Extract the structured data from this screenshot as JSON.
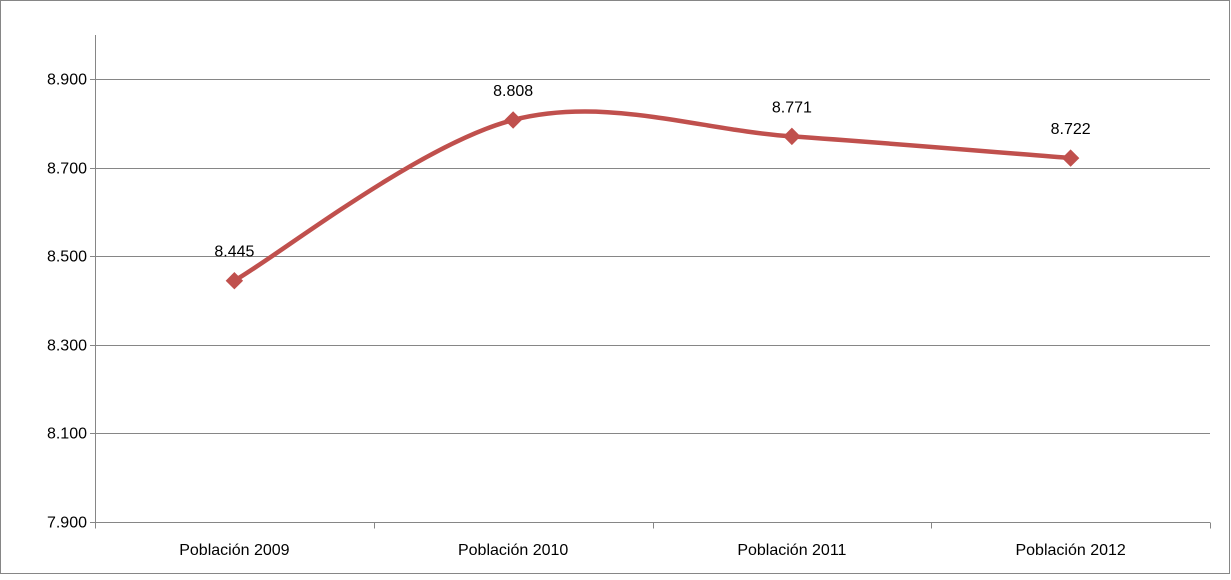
{
  "chart_data": {
    "type": "line",
    "categories": [
      "Población 2009",
      "Población 2010",
      "Población 2011",
      "Población 2012"
    ],
    "series": [
      {
        "values": [
          8445,
          8808,
          8771,
          8722
        ],
        "color": "#C0504D",
        "smooth": true,
        "marker": "diamond"
      }
    ],
    "data_labels": [
      "8.445",
      "8.808",
      "8.771",
      "8.722"
    ],
    "y_ticks": [
      7900,
      8100,
      8300,
      8500,
      8700,
      8900
    ],
    "y_tick_labels": [
      "7.900",
      "8.100",
      "8.300",
      "8.500",
      "8.700",
      "8.900"
    ],
    "ylim": [
      7900,
      9000
    ],
    "grid": true,
    "gridline_color": "#868686",
    "title": "",
    "xlabel": "",
    "ylabel": ""
  }
}
